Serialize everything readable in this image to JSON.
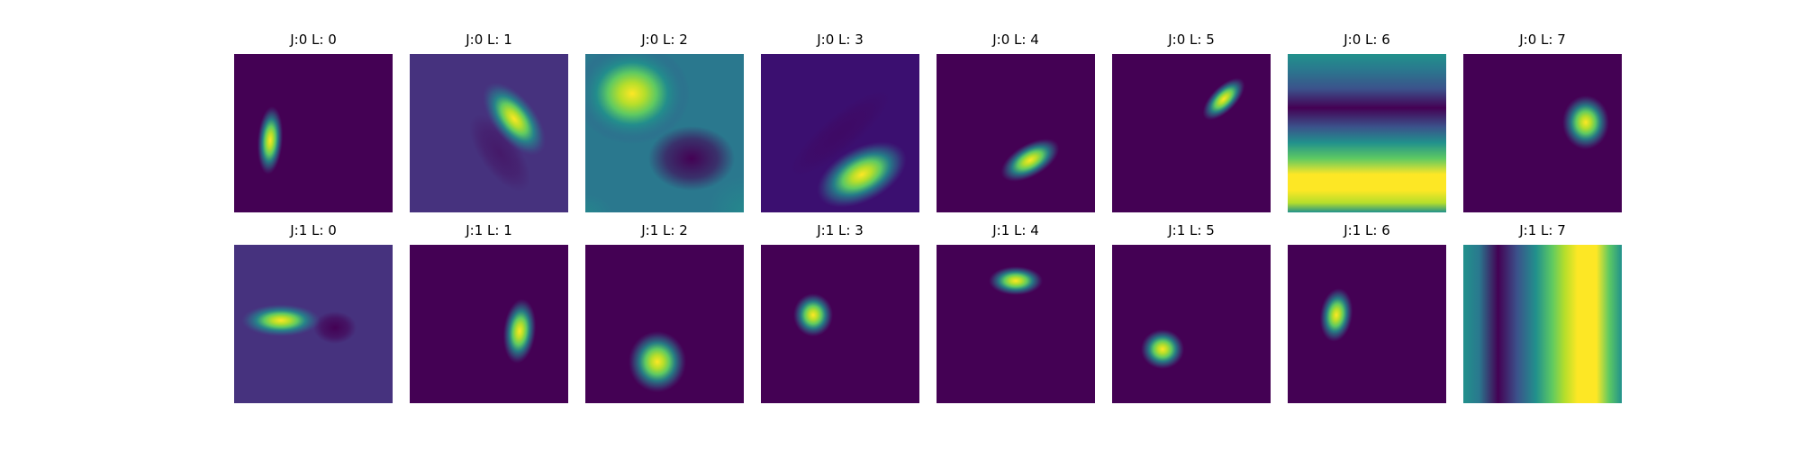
{
  "figure": {
    "rows": [
      {
        "panels": [
          {
            "title": "J:0 L: 0",
            "pattern": "vertical-elliptical-blob-left",
            "colormap": "viridis"
          },
          {
            "title": "J:0 L: 1",
            "pattern": "diagonal-elliptical-blob",
            "colormap": "viridis"
          },
          {
            "title": "J:0 L: 2",
            "pattern": "broad-bright-lobe-top-left-with-dark-lobe",
            "colormap": "viridis"
          },
          {
            "title": "J:0 L: 3",
            "pattern": "diagonal-blob-lower-right",
            "colormap": "viridis"
          },
          {
            "title": "J:0 L: 4",
            "pattern": "small-diagonal-blob-center",
            "colormap": "viridis"
          },
          {
            "title": "J:0 L: 5",
            "pattern": "small-diagonal-blob-top-right",
            "colormap": "viridis"
          },
          {
            "title": "J:0 L: 6",
            "pattern": "horizontal-stripes",
            "colormap": "viridis"
          },
          {
            "title": "J:0 L: 7",
            "pattern": "round-blob-right",
            "colormap": "viridis"
          }
        ]
      },
      {
        "panels": [
          {
            "title": "J:1 L: 0",
            "pattern": "horizontal-blob-with-dark-spot",
            "colormap": "viridis"
          },
          {
            "title": "J:1 L: 1",
            "pattern": "vertical-blob-right",
            "colormap": "viridis"
          },
          {
            "title": "J:1 L: 2",
            "pattern": "round-blob-bottom-center",
            "colormap": "viridis"
          },
          {
            "title": "J:1 L: 3",
            "pattern": "small-round-blob-left",
            "colormap": "viridis"
          },
          {
            "title": "J:1 L: 4",
            "pattern": "small-horizontal-blob-top",
            "colormap": "viridis"
          },
          {
            "title": "J:1 L: 5",
            "pattern": "small-round-blob-lower-left",
            "colormap": "viridis"
          },
          {
            "title": "J:1 L: 6",
            "pattern": "small-vertical-blob-left",
            "colormap": "viridis"
          },
          {
            "title": "J:1 L: 7",
            "pattern": "vertical-stripes",
            "colormap": "viridis"
          }
        ]
      }
    ]
  }
}
